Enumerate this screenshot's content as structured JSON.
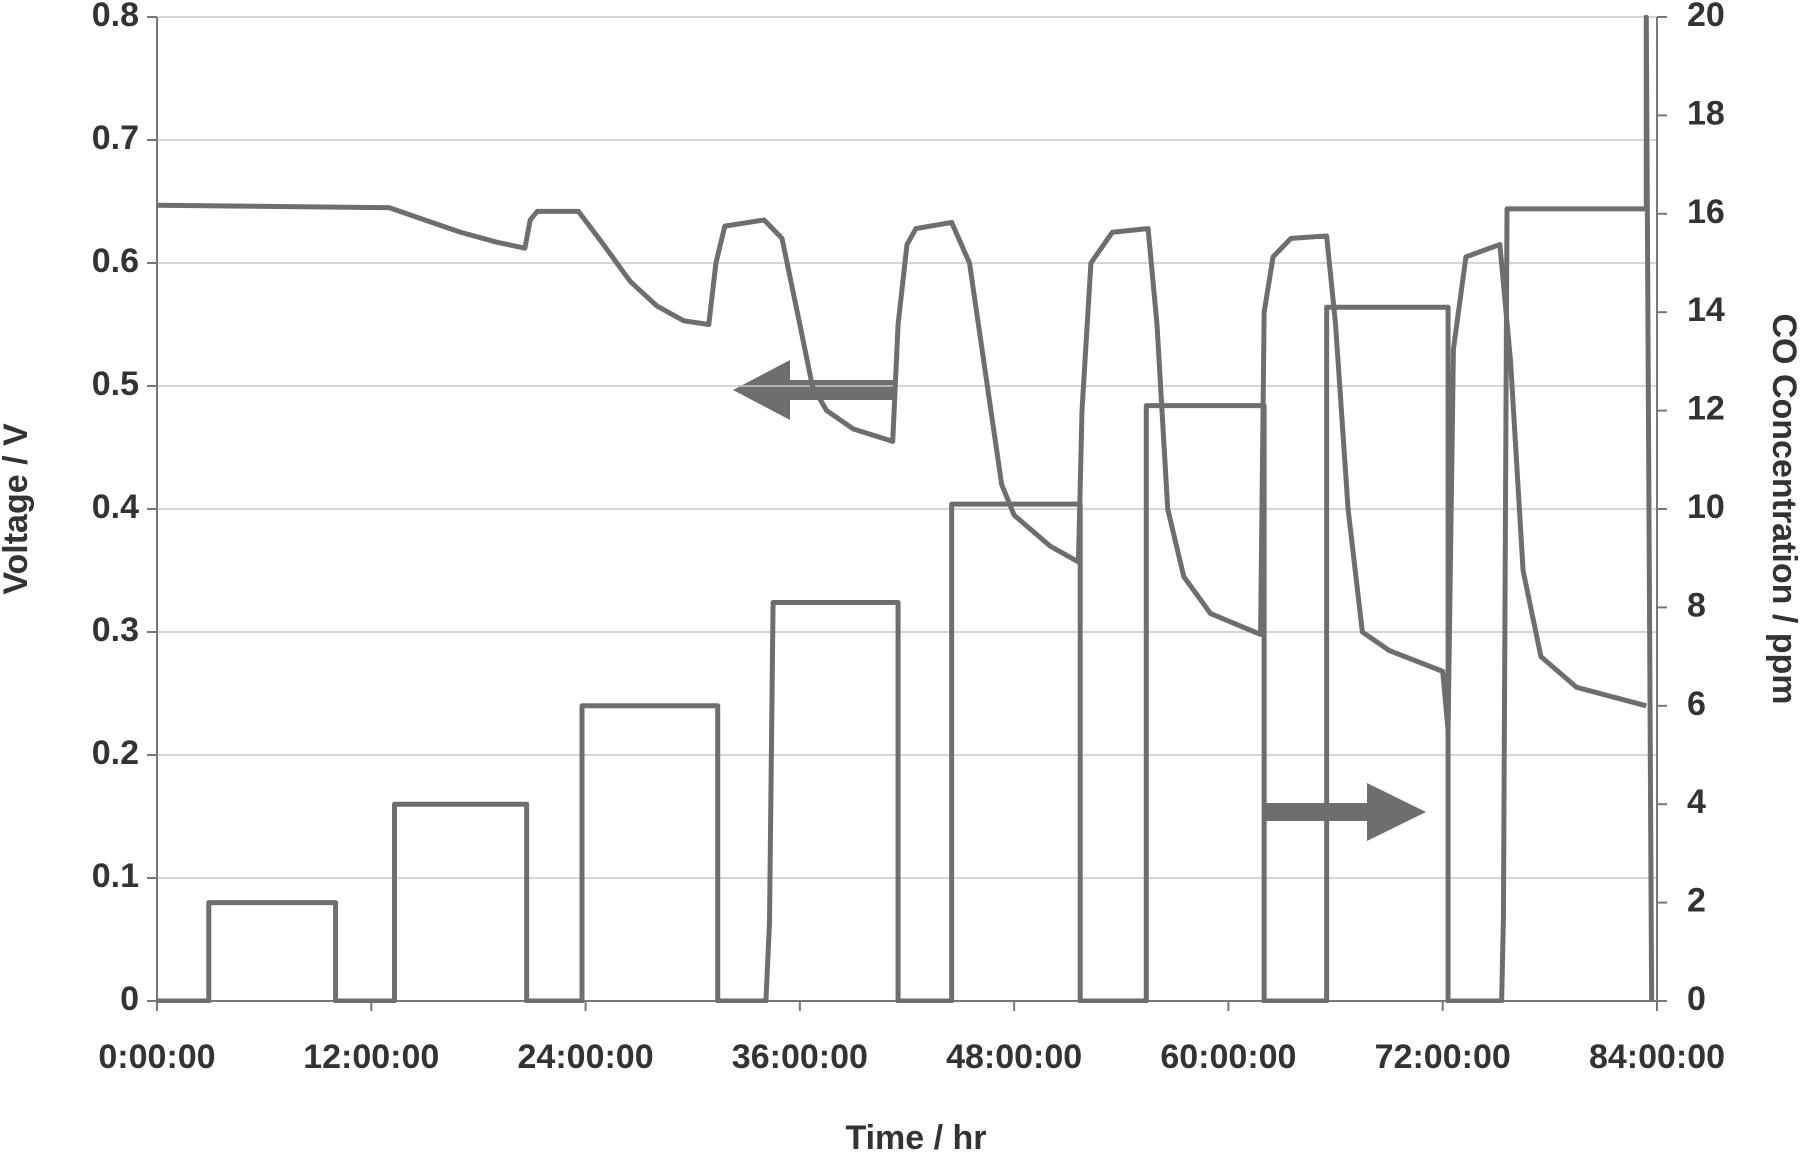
{
  "chart_data": {
    "type": "line",
    "xlabel": "Time / hr",
    "ylabel": "Voltage / V",
    "y2label": "CO Concentration / ppm",
    "xlim": [
      0,
      84
    ],
    "ylim": [
      0,
      0.8
    ],
    "y2lim": [
      0,
      20
    ],
    "xticks": [
      {
        "value": 0,
        "label": "0:00:00"
      },
      {
        "value": 12,
        "label": "12:00:00"
      },
      {
        "value": 24,
        "label": "24:00:00"
      },
      {
        "value": 36,
        "label": "36:00:00"
      },
      {
        "value": 48,
        "label": "48:00:00"
      },
      {
        "value": 60,
        "label": "60:00:00"
      },
      {
        "value": 72,
        "label": "72:00:00"
      },
      {
        "value": 84,
        "label": "84:00:00"
      }
    ],
    "yticks": [
      0,
      0.1,
      0.2,
      0.3,
      0.4,
      0.5,
      0.6,
      0.7,
      0.8
    ],
    "y2ticks": [
      0,
      2,
      4,
      6,
      8,
      10,
      12,
      14,
      16,
      18,
      20
    ],
    "grid": true,
    "series": [
      {
        "color": "#6e6e6e",
        "axis": "y",
        "x": [
          0,
          13,
          15,
          17,
          19,
          20.6,
          20.9,
          21.3,
          23.6,
          25,
          26.5,
          28,
          29.5,
          30.9,
          31.3,
          31.8,
          34,
          35,
          36,
          36.7,
          37.5,
          39,
          41.2,
          41.5,
          42,
          42.5,
          44.5,
          45.5,
          46.5,
          47.3,
          48,
          50,
          51.6,
          51.8,
          52.3,
          53.5,
          55.5,
          56,
          56.6,
          57.5,
          59,
          61.8,
          62,
          62.5,
          63.5,
          65.5,
          66,
          66.7,
          67.5,
          69,
          72,
          72.3,
          72.6,
          73.3,
          75.2,
          75.8,
          76.5,
          77.5,
          79.5,
          83.4
        ],
        "values": [
          0.647,
          0.645,
          0.635,
          0.625,
          0.617,
          0.612,
          0.635,
          0.642,
          0.642,
          0.615,
          0.585,
          0.565,
          0.553,
          0.55,
          0.6,
          0.63,
          0.635,
          0.62,
          0.55,
          0.5,
          0.48,
          0.465,
          0.455,
          0.55,
          0.615,
          0.628,
          0.633,
          0.6,
          0.5,
          0.42,
          0.395,
          0.37,
          0.357,
          0.48,
          0.6,
          0.625,
          0.628,
          0.55,
          0.4,
          0.345,
          0.315,
          0.298,
          0.56,
          0.605,
          0.62,
          0.622,
          0.55,
          0.4,
          0.3,
          0.285,
          0.268,
          0.22,
          0.53,
          0.605,
          0.615,
          0.52,
          0.35,
          0.28,
          0.255,
          0.24
        ]
      },
      {
        "color": "#6e6e6e",
        "axis": "y2",
        "x": [
          0,
          2.9,
          2.9,
          10,
          10,
          13.3,
          13.3,
          20.7,
          20.7,
          23.8,
          23.8,
          31.4,
          31.4,
          34.1,
          34.3,
          34.5,
          41.5,
          41.5,
          44.5,
          44.5,
          51.7,
          51.7,
          55.4,
          55.4,
          62,
          62,
          65.5,
          65.5,
          72.3,
          72.3,
          75.3,
          75.4,
          75.6,
          83.4,
          83.4,
          83.7
        ],
        "values": [
          0,
          0,
          2,
          2,
          0,
          0,
          4,
          4,
          0,
          0,
          6,
          6,
          0,
          0,
          1.6,
          8.1,
          8.1,
          0,
          0,
          10.1,
          10.1,
          0,
          0,
          12.1,
          12.1,
          0,
          0,
          14.1,
          14.1,
          0,
          0,
          1.7,
          16.1,
          16.1,
          20,
          0
        ]
      }
    ]
  }
}
